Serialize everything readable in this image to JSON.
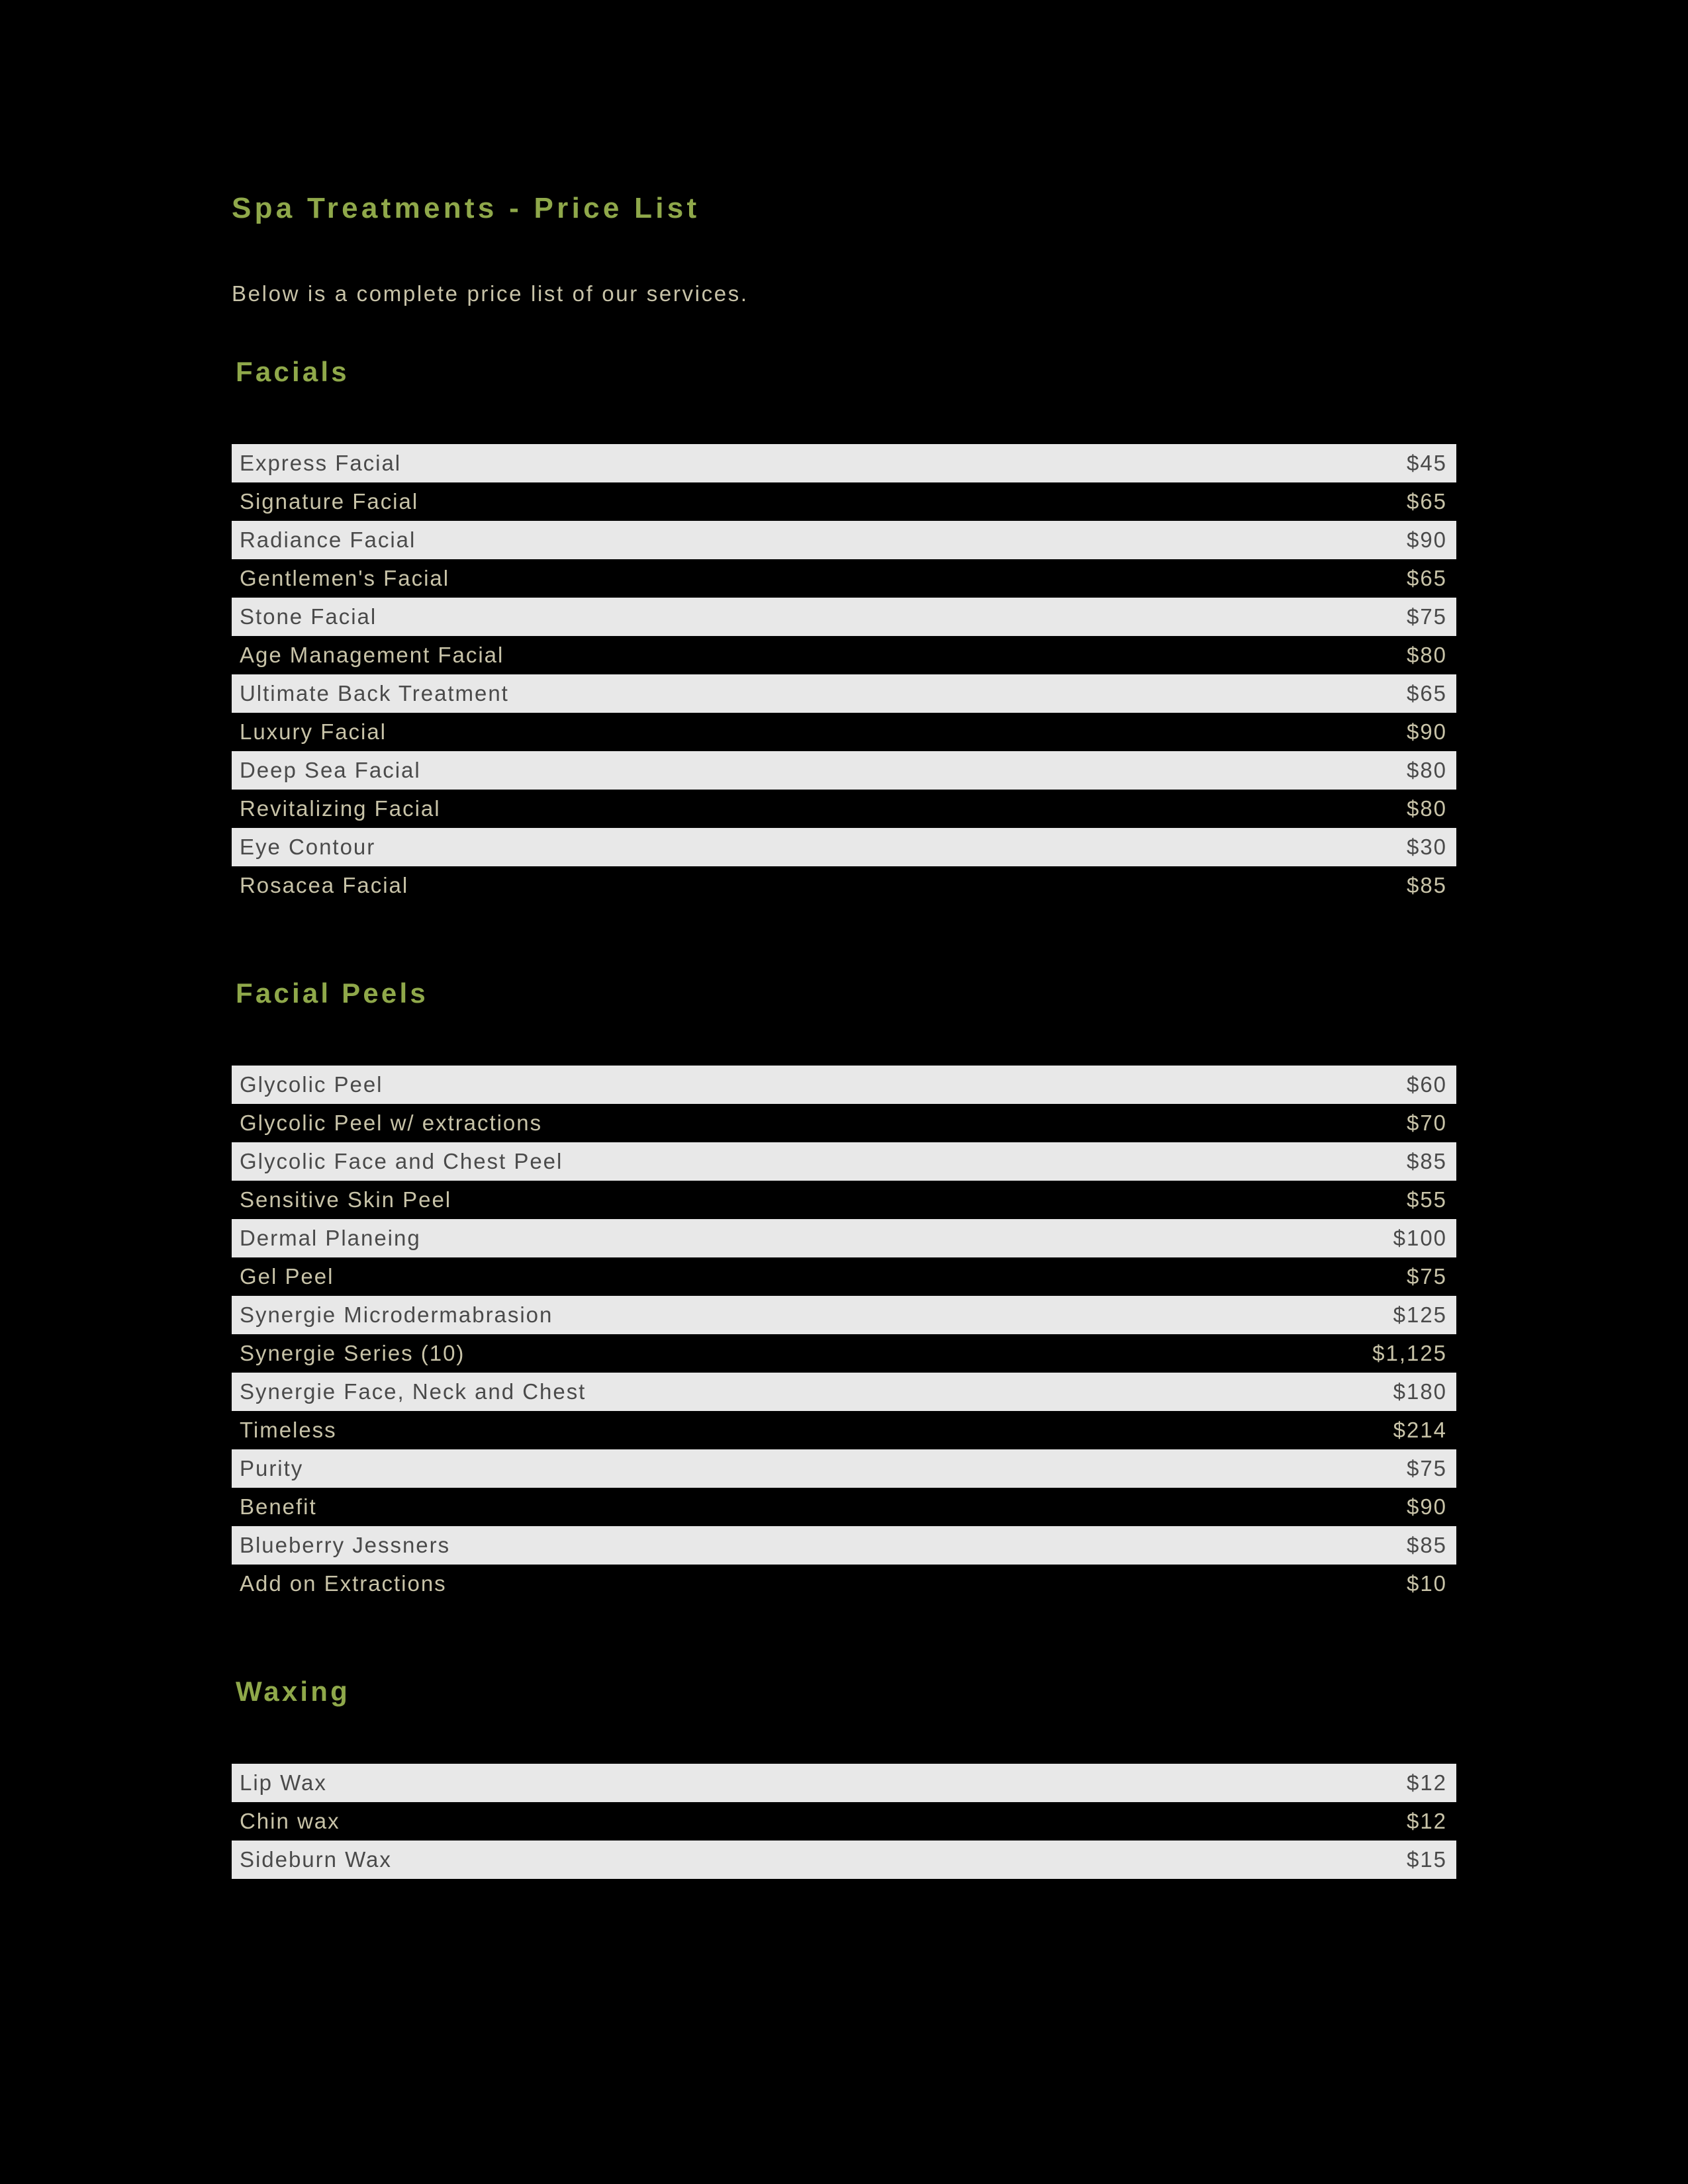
{
  "page": {
    "title": "Spa Treatments - Price List",
    "intro": "Below is a complete price list of our services."
  },
  "colors": {
    "background": "#000000",
    "heading": "#8fa84a",
    "text_light_bg": "#4a4a4a",
    "text_dark_bg": "#c8c3a8",
    "row_light": "#e8e8e8",
    "row_dark": "#000000"
  },
  "typography": {
    "title_fontsize": 44,
    "section_fontsize": 42,
    "body_fontsize": 33,
    "font_family": "Verdana"
  },
  "sections": [
    {
      "title": "Facials",
      "items": [
        {
          "name": "Express Facial",
          "price": "$45",
          "shade": "light"
        },
        {
          "name": "Signature Facial",
          "price": "$65",
          "shade": "dark"
        },
        {
          "name": "Radiance Facial",
          "price": "$90",
          "shade": "light"
        },
        {
          "name": "Gentlemen's Facial",
          "price": "$65",
          "shade": "dark"
        },
        {
          "name": "Stone Facial",
          "price": "$75",
          "shade": "light"
        },
        {
          "name": "Age Management Facial",
          "price": "$80",
          "shade": "dark"
        },
        {
          "name": "Ultimate Back Treatment",
          "price": "$65",
          "shade": "light"
        },
        {
          "name": "Luxury Facial",
          "price": "$90",
          "shade": "dark"
        },
        {
          "name": "Deep Sea Facial",
          "price": "$80",
          "shade": "light"
        },
        {
          "name": "Revitalizing Facial",
          "price": "$80",
          "shade": "dark"
        },
        {
          "name": "Eye Contour",
          "price": "$30",
          "shade": "light"
        },
        {
          "name": "Rosacea Facial",
          "price": "$85",
          "shade": "dark"
        }
      ]
    },
    {
      "title": "Facial Peels",
      "items": [
        {
          "name": "Glycolic Peel",
          "price": "$60",
          "shade": "light"
        },
        {
          "name": "Glycolic Peel w/ extractions",
          "price": "$70",
          "shade": "dark"
        },
        {
          "name": "Glycolic Face and Chest Peel",
          "price": "$85",
          "shade": "light"
        },
        {
          "name": "Sensitive Skin Peel",
          "price": "$55",
          "shade": "dark"
        },
        {
          "name": "Dermal Planeing",
          "price": "$100",
          "shade": "light"
        },
        {
          "name": "Gel Peel",
          "price": "$75",
          "shade": "dark"
        },
        {
          "name": "Synergie Microdermabrasion",
          "price": "$125",
          "shade": "light"
        },
        {
          "name": "Synergie Series (10)",
          "price": "$1,125",
          "shade": "dark"
        },
        {
          "name": "Synergie Face, Neck and Chest",
          "price": "$180",
          "shade": "light"
        },
        {
          "name": "Timeless",
          "price": "$214",
          "shade": "dark"
        },
        {
          "name": "Purity",
          "price": "$75",
          "shade": "light"
        },
        {
          "name": "Benefit",
          "price": "$90",
          "shade": "dark"
        },
        {
          "name": "Blueberry Jessners",
          "price": "$85",
          "shade": "light"
        },
        {
          "name": "Add on Extractions",
          "price": "$10",
          "shade": "dark"
        }
      ]
    },
    {
      "title": "Waxing",
      "items": [
        {
          "name": "Lip Wax",
          "price": "$12",
          "shade": "light"
        },
        {
          "name": "Chin wax",
          "price": "$12",
          "shade": "dark"
        },
        {
          "name": "Sideburn Wax",
          "price": "$15",
          "shade": "light"
        }
      ]
    }
  ]
}
